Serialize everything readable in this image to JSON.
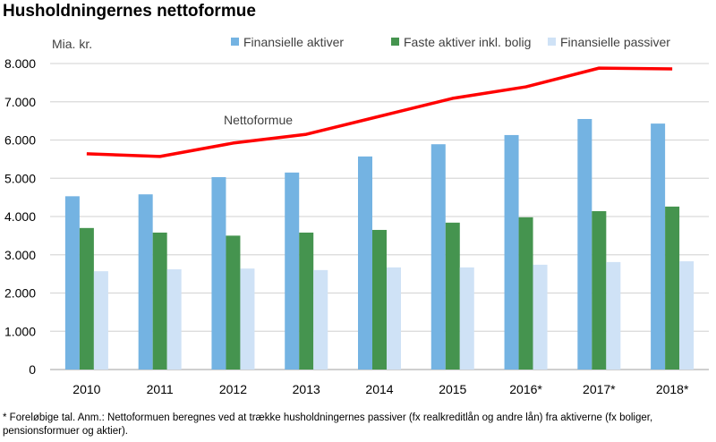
{
  "title": "Husholdningernes nettoformue",
  "footnote": "* Foreløbige tal. Anm.: Nettoformuen beregnes ved at trække husholdningernes passiver (fx realkreditlån og andre lån) fra aktiverne (fx boliger, pensionsformuer og aktier).",
  "chart_data": {
    "type": "bar",
    "title": "Husholdningernes nettoformue",
    "ylabel": "Mia. kr.",
    "ylim": [
      0,
      8000
    ],
    "yticks": [
      "0",
      "1.000",
      "2.000",
      "3.000",
      "4.000",
      "5.000",
      "6.000",
      "7.000",
      "8.000"
    ],
    "grid": true,
    "legend_placement": "top",
    "categories": [
      "2010",
      "2011",
      "2012",
      "2013",
      "2014",
      "2015",
      "2016*",
      "2017*",
      "2018*"
    ],
    "series": [
      {
        "name": "Finansielle aktiver",
        "type": "bar",
        "color": "#74b3e2",
        "values": [
          4530,
          4580,
          5030,
          5150,
          5570,
          5890,
          6130,
          6550,
          6430
        ]
      },
      {
        "name": "Faste aktiver inkl. bolig",
        "type": "bar",
        "color": "#45944f",
        "values": [
          3700,
          3580,
          3500,
          3580,
          3650,
          3840,
          3980,
          4140,
          4260
        ]
      },
      {
        "name": "Finansielle passiver",
        "type": "bar",
        "color": "#cfe2f6",
        "values": [
          2570,
          2620,
          2640,
          2600,
          2670,
          2670,
          2740,
          2810,
          2830
        ]
      },
      {
        "name": "Nettoformue",
        "type": "line",
        "color": "#ff0000",
        "values": [
          5640,
          5570,
          5920,
          6150,
          6620,
          7090,
          7390,
          7880,
          7860
        ]
      }
    ]
  }
}
